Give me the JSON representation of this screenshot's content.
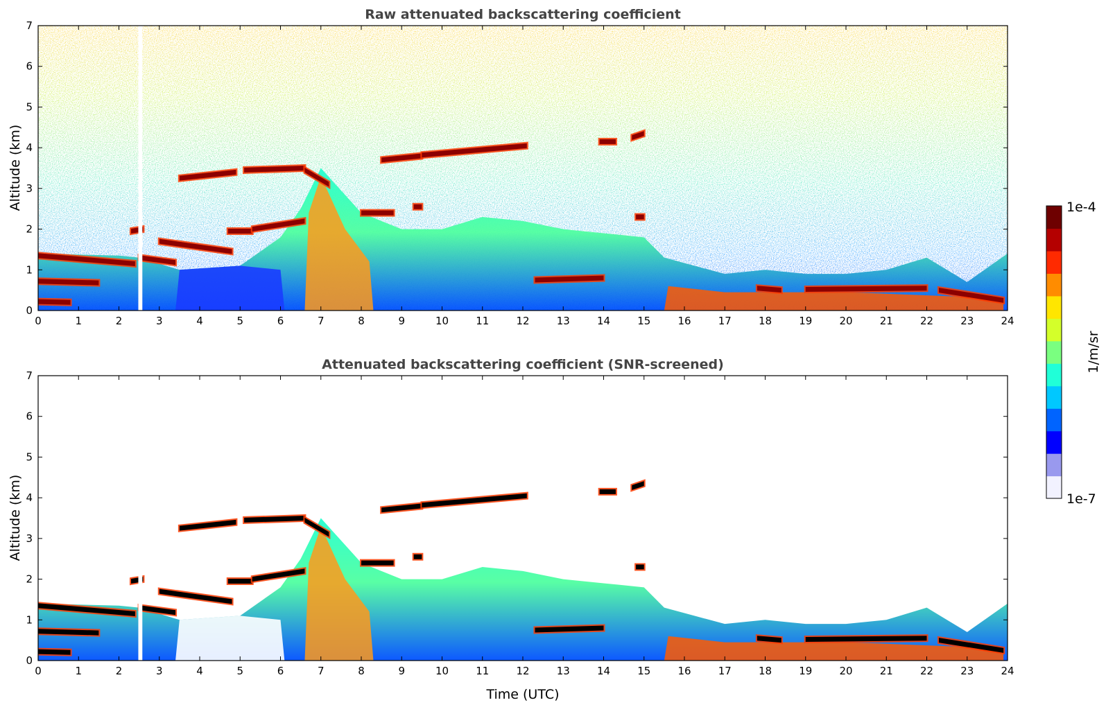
{
  "chart_data": [
    {
      "type": "heatmap",
      "title": "Raw attenuated backscattering coefficient",
      "xlabel": "",
      "ylabel": "Altitude (km)",
      "xlim": [
        0,
        24
      ],
      "ylim": [
        0,
        7
      ],
      "x_ticks": [
        0,
        1,
        2,
        3,
        4,
        5,
        6,
        7,
        8,
        9,
        10,
        11,
        12,
        13,
        14,
        15,
        16,
        17,
        18,
        19,
        20,
        21,
        22,
        23,
        24
      ],
      "y_ticks": [
        0,
        1,
        2,
        3,
        4,
        5,
        6,
        7
      ],
      "background": "noisy",
      "boundary_layer_top_km": [
        [
          0,
          1.4
        ],
        [
          2,
          1.35
        ],
        [
          2.5,
          1.3
        ],
        [
          3.5,
          1.0
        ],
        [
          5.0,
          1.1
        ],
        [
          6.0,
          1.8
        ],
        [
          6.5,
          2.5
        ],
        [
          7,
          3.5
        ],
        [
          8,
          2.4
        ],
        [
          9,
          2.0
        ],
        [
          10,
          2.0
        ],
        [
          11,
          2.3
        ],
        [
          12,
          2.2
        ],
        [
          13,
          2.0
        ],
        [
          14,
          1.9
        ],
        [
          15,
          1.8
        ],
        [
          15.5,
          1.3
        ],
        [
          17,
          0.9
        ],
        [
          18,
          1.0
        ],
        [
          19,
          0.9
        ],
        [
          20,
          0.9
        ],
        [
          21,
          1.0
        ],
        [
          22,
          1.3
        ],
        [
          23,
          0.7
        ],
        [
          24,
          1.4
        ]
      ],
      "cloud_layers": [
        {
          "x0": 0.0,
          "x1": 2.4,
          "y0": 1.35,
          "y1": 1.15
        },
        {
          "x0": 2.5,
          "x1": 3.4,
          "y0": 1.3,
          "y1": 1.18
        },
        {
          "x0": 0.0,
          "x1": 1.5,
          "y0": 0.72,
          "y1": 0.68
        },
        {
          "x0": 0.0,
          "x1": 0.8,
          "y0": 0.22,
          "y1": 0.2
        },
        {
          "x0": 3.0,
          "x1": 4.8,
          "y0": 1.7,
          "y1": 1.45
        },
        {
          "x0": 2.3,
          "x1": 2.6,
          "y0": 1.95,
          "y1": 2.0
        },
        {
          "x0": 4.7,
          "x1": 5.3,
          "y0": 1.95,
          "y1": 1.95
        },
        {
          "x0": 5.3,
          "x1": 6.6,
          "y0": 2.0,
          "y1": 2.2
        },
        {
          "x0": 3.5,
          "x1": 4.9,
          "y0": 3.25,
          "y1": 3.4
        },
        {
          "x0": 5.1,
          "x1": 6.6,
          "y0": 3.45,
          "y1": 3.5
        },
        {
          "x0": 6.6,
          "x1": 7.2,
          "y0": 3.45,
          "y1": 3.1
        },
        {
          "x0": 8.0,
          "x1": 8.8,
          "y0": 2.4,
          "y1": 2.4
        },
        {
          "x0": 9.3,
          "x1": 9.5,
          "y0": 2.55,
          "y1": 2.55
        },
        {
          "x0": 8.5,
          "x1": 9.5,
          "y0": 3.7,
          "y1": 3.8
        },
        {
          "x0": 9.5,
          "x1": 12.1,
          "y0": 3.82,
          "y1": 4.05
        },
        {
          "x0": 13.9,
          "x1": 14.3,
          "y0": 4.15,
          "y1": 4.15
        },
        {
          "x0": 14.7,
          "x1": 15.0,
          "y0": 4.25,
          "y1": 4.35
        },
        {
          "x0": 14.8,
          "x1": 15.0,
          "y0": 2.3,
          "y1": 2.3
        },
        {
          "x0": 12.3,
          "x1": 14.0,
          "y0": 0.75,
          "y1": 0.8
        },
        {
          "x0": 17.8,
          "x1": 18.4,
          "y0": 0.55,
          "y1": 0.5
        },
        {
          "x0": 19.0,
          "x1": 22.0,
          "y0": 0.52,
          "y1": 0.55
        },
        {
          "x0": 22.3,
          "x1": 23.9,
          "y0": 0.5,
          "y1": 0.25
        }
      ],
      "data_gaps": [
        {
          "x0": 2.48,
          "x1": 2.58
        }
      ],
      "colorbar": {
        "min_label": "1e-7",
        "max_label": "1e-4",
        "label": "1/m/sr",
        "scale": "log"
      }
    },
    {
      "type": "heatmap",
      "title": "Attenuated backscattering coefficient (SNR-screened)",
      "xlabel": "Time (UTC)",
      "ylabel": "Altitude (km)",
      "xlim": [
        0,
        24
      ],
      "ylim": [
        0,
        7
      ],
      "x_ticks": [
        0,
        1,
        2,
        3,
        4,
        5,
        6,
        7,
        8,
        9,
        10,
        11,
        12,
        13,
        14,
        15,
        16,
        17,
        18,
        19,
        20,
        21,
        22,
        23,
        24
      ],
      "y_ticks": [
        0,
        1,
        2,
        3,
        4,
        5,
        6,
        7
      ],
      "background": "screened",
      "cloud_core_color": "#000000"
    }
  ],
  "colorbar": {
    "min_label": "1e-7",
    "max_label": "1e-4",
    "label": "1/m/sr",
    "colors": [
      "#f2f2ff",
      "#9999ee",
      "#0000ff",
      "#0064ff",
      "#00c8ff",
      "#20ffd8",
      "#7aff80",
      "#d4ff2a",
      "#ffe600",
      "#ff8c00",
      "#ff2a00",
      "#b40000",
      "#6e0000"
    ]
  }
}
